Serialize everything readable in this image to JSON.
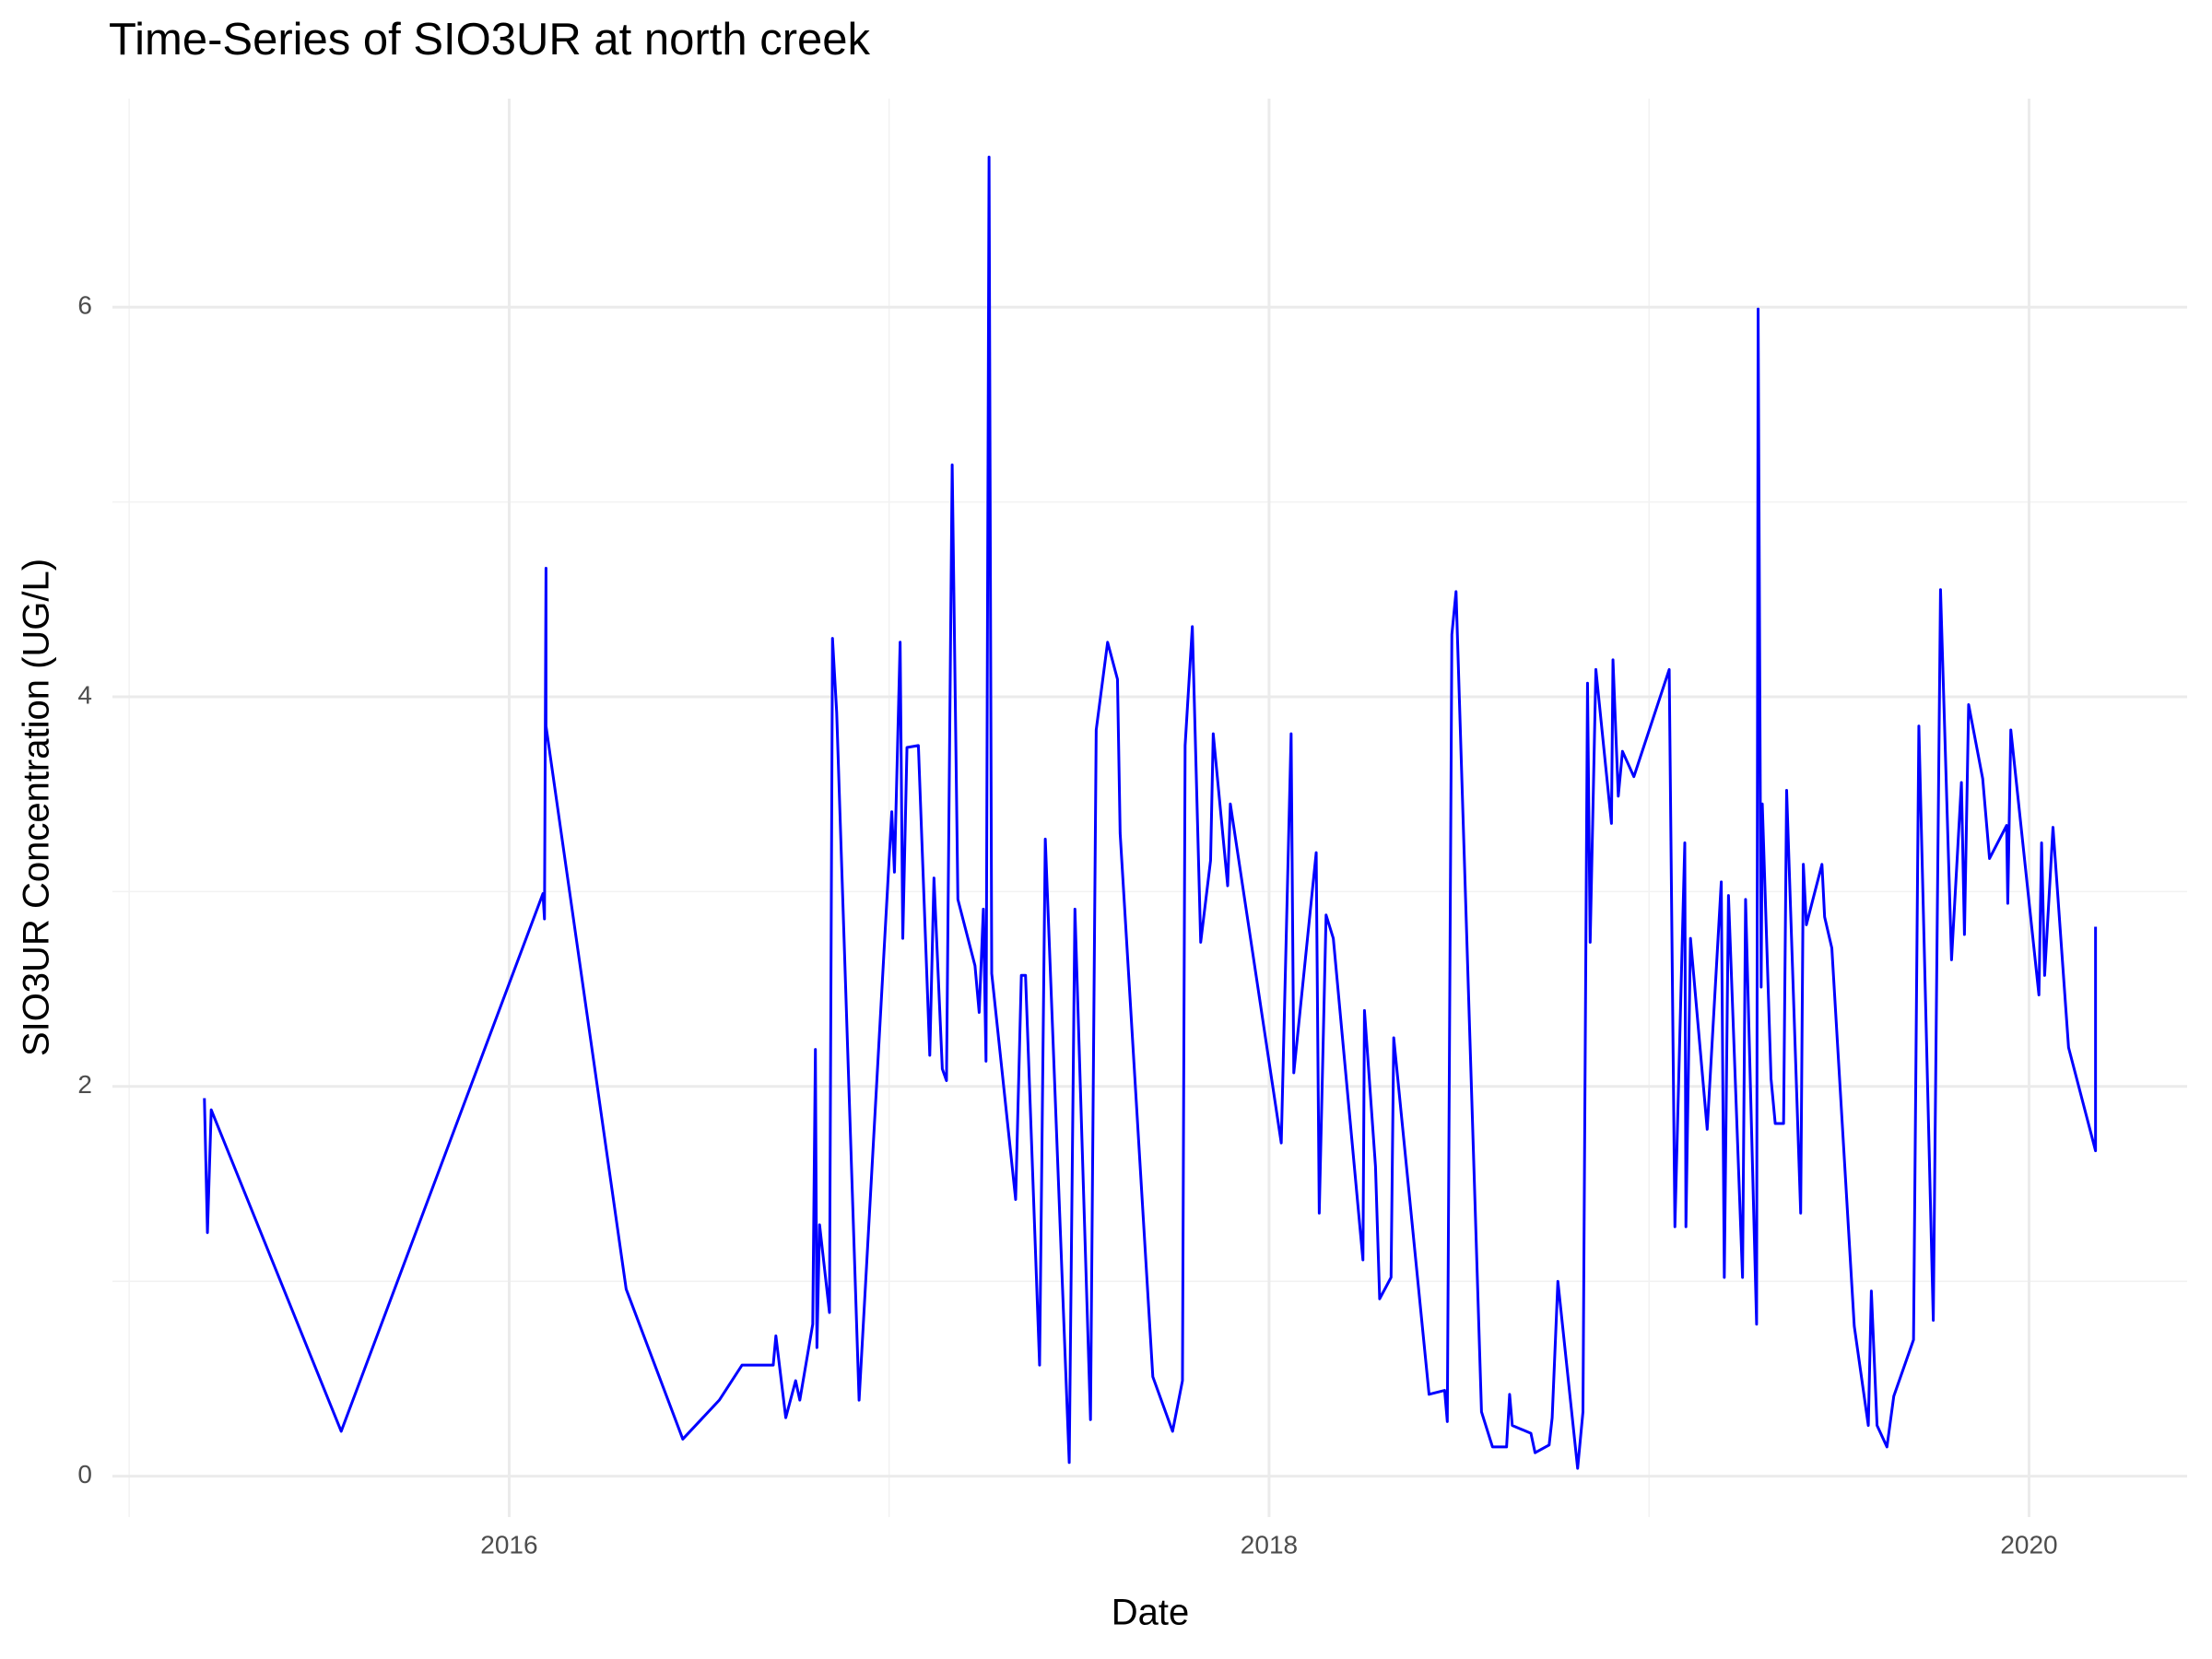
{
  "chart_data": {
    "type": "line",
    "title": "Time-Series of SIO3UR at north creek",
    "x_label": "Date",
    "y_label": "SIO3UR Concentration (UG/L)",
    "xlim": [
      2014.956,
      2020.416
    ],
    "ylim": [
      -0.21,
      7.07
    ],
    "xticks": [
      2016,
      2018,
      2020
    ],
    "yticks": [
      0,
      2,
      4,
      6
    ],
    "x_minor_grid": [
      2015,
      2017,
      2019
    ],
    "y_minor_grid": [
      1,
      3,
      5
    ],
    "grid": true,
    "series": [
      {
        "color": "#0000ff",
        "x": [
          2015.198,
          2015.206,
          2015.216,
          2015.558,
          2016.089,
          2016.093,
          2016.097,
          2016.097,
          2016.308,
          2016.457,
          2016.553,
          2016.613,
          2016.695,
          2016.702,
          2016.728,
          2016.754,
          2016.765,
          2016.799,
          2016.806,
          2016.81,
          2016.817,
          2016.843,
          2016.851,
          2016.862,
          2016.921,
          2017.007,
          2017.014,
          2017.029,
          2017.036,
          2017.047,
          2017.077,
          2017.107,
          2017.118,
          2017.14,
          2017.151,
          2017.166,
          2017.181,
          2017.226,
          2017.237,
          2017.248,
          2017.255,
          2017.263,
          2017.27,
          2017.333,
          2017.348,
          2017.359,
          2017.396,
          2017.411,
          2017.474,
          2017.489,
          2017.53,
          2017.545,
          2017.575,
          2017.601,
          2017.608,
          2017.694,
          2017.746,
          2017.772,
          2017.779,
          2017.798,
          2017.82,
          2017.846,
          2017.853,
          2017.891,
          2017.898,
          2018.032,
          2018.058,
          2018.065,
          2018.124,
          2018.132,
          2018.15,
          2018.169,
          2018.247,
          2018.251,
          2018.28,
          2018.291,
          2018.321,
          2018.328,
          2018.421,
          2018.462,
          2018.469,
          2018.481,
          2018.492,
          2018.559,
          2018.588,
          2018.625,
          2018.633,
          2018.64,
          2018.689,
          2018.7,
          2018.737,
          2018.745,
          2018.76,
          2018.812,
          2018.826,
          2018.838,
          2018.845,
          2018.86,
          2018.901,
          2018.905,
          2018.919,
          2018.93,
          2018.96,
          2019.053,
          2019.068,
          2019.094,
          2019.097,
          2019.109,
          2019.153,
          2019.19,
          2019.198,
          2019.209,
          2019.246,
          2019.254,
          2019.283,
          2019.287,
          2019.295,
          2019.298,
          2019.321,
          2019.332,
          2019.354,
          2019.362,
          2019.399,
          2019.406,
          2019.414,
          2019.455,
          2019.462,
          2019.481,
          2019.54,
          2019.577,
          2019.585,
          2019.6,
          2019.626,
          2019.644,
          2019.696,
          2019.71,
          2019.748,
          2019.767,
          2019.796,
          2019.822,
          2019.83,
          2019.841,
          2019.878,
          2019.896,
          2019.941,
          2019.944,
          2019.952,
          2020.026,
          2020.033,
          2020.041,
          2020.063,
          2020.104,
          2020.175,
          2020.175
        ],
        "values": [
          1.94,
          1.25,
          1.88,
          0.23,
          2.99,
          2.86,
          4.66,
          3.85,
          0.96,
          0.19,
          0.39,
          0.57,
          0.57,
          0.72,
          0.3,
          0.49,
          0.39,
          0.78,
          2.19,
          0.66,
          1.29,
          0.84,
          4.3,
          3.92,
          0.39,
          3.41,
          3.1,
          4.28,
          2.76,
          3.74,
          3.75,
          2.16,
          3.07,
          2.09,
          2.03,
          5.19,
          2.96,
          2.62,
          2.38,
          2.91,
          2.13,
          6.77,
          2.58,
          1.42,
          2.57,
          2.57,
          0.57,
          3.27,
          0.07,
          2.91,
          0.29,
          3.83,
          4.28,
          4.09,
          3.3,
          0.51,
          0.23,
          0.49,
          3.75,
          4.36,
          2.74,
          3.16,
          3.81,
          3.03,
          3.45,
          1.71,
          3.81,
          2.07,
          3.2,
          1.35,
          2.88,
          2.76,
          1.11,
          2.39,
          1.59,
          0.91,
          1.02,
          2.25,
          0.42,
          0.44,
          0.28,
          4.32,
          4.54,
          0.33,
          0.15,
          0.15,
          0.42,
          0.26,
          0.22,
          0.12,
          0.16,
          0.3,
          1.0,
          0.04,
          0.33,
          4.07,
          2.74,
          4.14,
          3.35,
          4.19,
          3.49,
          3.72,
          3.59,
          4.14,
          1.28,
          3.25,
          1.28,
          2.76,
          1.78,
          3.05,
          1.02,
          2.98,
          1.02,
          2.96,
          0.78,
          5.99,
          2.51,
          3.45,
          2.04,
          1.81,
          1.81,
          3.52,
          1.35,
          3.14,
          2.83,
          3.14,
          2.87,
          2.71,
          0.77,
          0.26,
          0.95,
          0.26,
          0.15,
          0.41,
          0.7,
          3.85,
          0.8,
          4.55,
          2.65,
          3.56,
          2.78,
          3.96,
          3.58,
          3.17,
          3.34,
          2.94,
          3.83,
          2.47,
          3.25,
          2.57,
          3.33,
          2.2,
          1.67,
          2.82
        ]
      }
    ]
  }
}
